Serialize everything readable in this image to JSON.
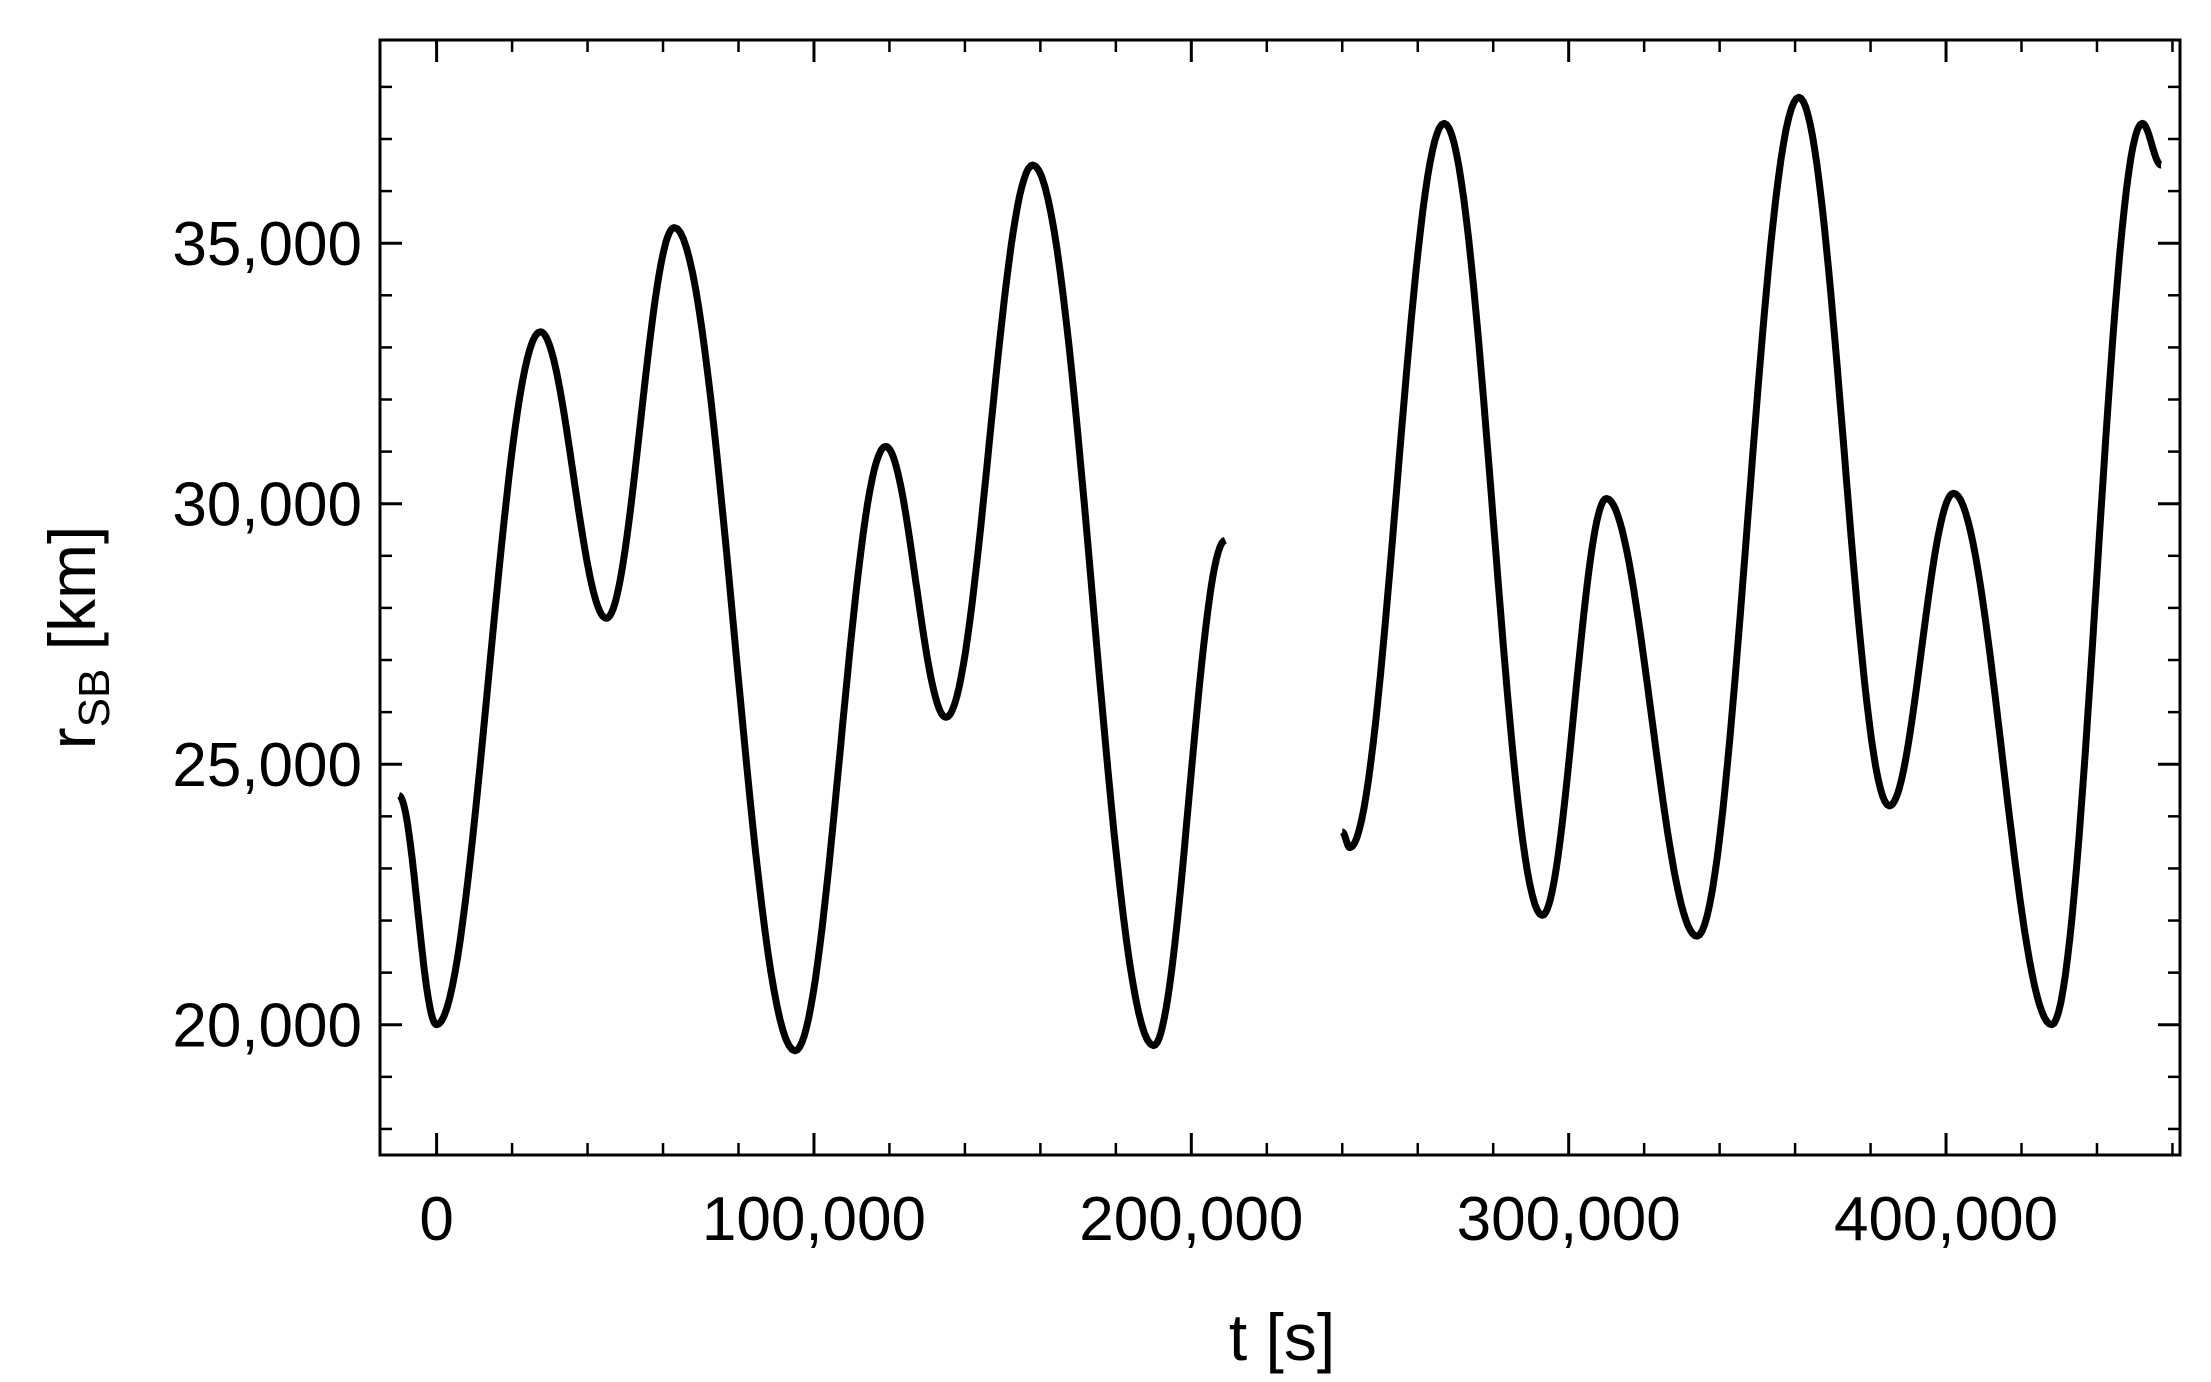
{
  "chart_data": {
    "type": "line",
    "xlabel": "t [s]",
    "ylabel_main": "r",
    "ylabel_sub": "SB",
    "ylabel_unit": " [km]",
    "xlim": [
      -15000,
      462000
    ],
    "ylim": [
      17500,
      38900
    ],
    "x_ticks": [
      0,
      100000,
      200000,
      300000,
      400000
    ],
    "x_tick_labels": [
      "0",
      "100,000",
      "200,000",
      "300,000",
      "400,000"
    ],
    "y_ticks": [
      20000,
      25000,
      30000,
      35000
    ],
    "y_tick_labels": [
      "20,000",
      "25,000",
      "30,000",
      "35,000"
    ],
    "x_minor_step": 20000,
    "y_minor_step": 1000,
    "grid": false,
    "legend": "none",
    "line_color": "#000000",
    "series": [
      {
        "points": [
          [
            -10000,
            24400
          ],
          [
            0,
            20000
          ],
          [
            27500,
            33300
          ],
          [
            45000,
            27800
          ],
          [
            63000,
            35300
          ],
          [
            95000,
            19500
          ],
          [
            119000,
            31100
          ],
          [
            135000,
            25900
          ],
          [
            158000,
            36500
          ],
          [
            190000,
            19600
          ],
          [
            209000,
            29300
          ]
        ]
      },
      {
        "points": [
          [
            240000,
            23700
          ],
          [
            242000,
            23400
          ],
          [
            267000,
            37300
          ],
          [
            293000,
            22100
          ],
          [
            310000,
            30100
          ],
          [
            334000,
            21700
          ],
          [
            361000,
            37800
          ],
          [
            385000,
            24200
          ],
          [
            402000,
            30200
          ],
          [
            428000,
            20000
          ],
          [
            452000,
            37300
          ],
          [
            457000,
            36500
          ]
        ]
      }
    ]
  }
}
